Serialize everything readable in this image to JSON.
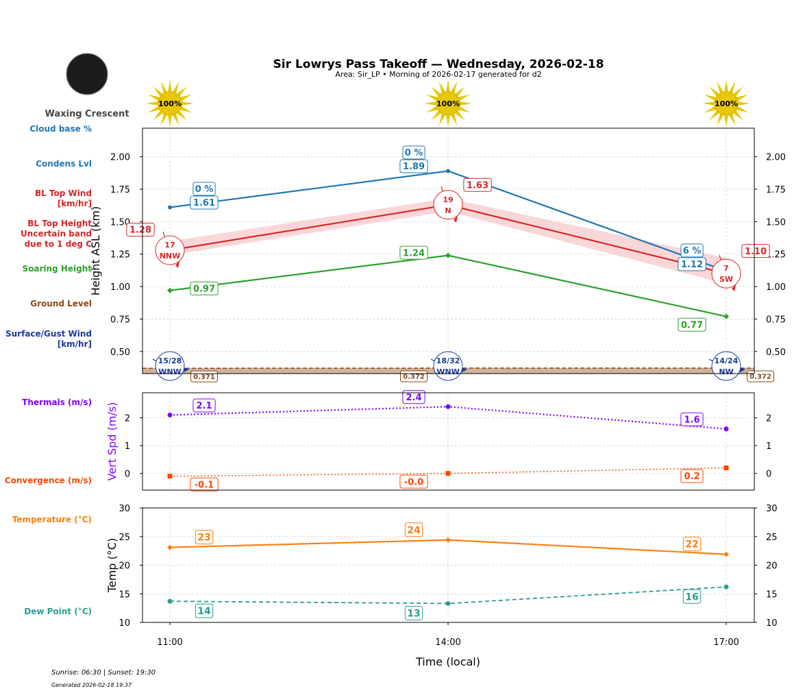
{
  "title": "Sir Lowrys Pass Takeoff — Wednesday, 2026-02-18",
  "subtitle": "Area: Sir_LP • Morning of 2026-02-17 generated for d2",
  "moon_phase": "Waxing Crescent",
  "footer": {
    "sun": "Sunrise: 06:30 | Sunset: 19:30",
    "generated": "Generated 2026-02-18 19:37"
  },
  "colors": {
    "cloud": "#1f77b4",
    "bltop": "#d62728",
    "band": "#f7c6c9",
    "soaring": "#2ca02c",
    "ground": "#8b4513",
    "surface": "#1a3a9e",
    "thermals": "#7f00ff",
    "convergence": "#ff4500",
    "temperature": "#ff7f0e",
    "dewpoint": "#2a9d8f",
    "sun": "#e8c70a"
  },
  "row_labels": {
    "cloud_base": "Cloud base %",
    "condens": "Condens Lvl",
    "bl_wind": [
      "BL Top Wind",
      "[km/hr]"
    ],
    "bl_height": [
      "BL Top Height",
      "Uncertain band",
      "due to 1 deg C"
    ],
    "soaring": "Soaring Height",
    "ground": "Ground Level",
    "surface_wind": [
      "Surface/Gust Wind",
      "[km/hr]"
    ],
    "thermals": "Thermals (m/s)",
    "convergence": "Convergence (m/s)",
    "temperature": "Temperature (°C)",
    "dewpoint": "Dew Point (°C)"
  },
  "chart_data": [
    {
      "type": "line",
      "ylabel": "Height ASL (km)",
      "ylim": [
        0.33,
        2.22
      ],
      "yticks": [
        "0.50",
        "0.75",
        "1.00",
        "1.25",
        "1.50",
        "1.75",
        "2.00"
      ],
      "x": [
        "11:00",
        "14:00",
        "17:00"
      ],
      "sun_percent": [
        "100%",
        "100%",
        "100%"
      ],
      "series": [
        {
          "name": "Condens Lvl",
          "values": [
            1.61,
            1.89,
            1.12
          ],
          "labels": [
            "1.61",
            "1.89",
            "1.12"
          ]
        },
        {
          "name": "Cloud base %",
          "values": [
            0,
            0,
            6
          ],
          "labels": [
            "0 %",
            "0 %",
            "6 %"
          ]
        },
        {
          "name": "BL Top Height",
          "values": [
            1.28,
            1.63,
            1.1
          ],
          "labels": [
            "1.28",
            "1.63",
            "1.10"
          ],
          "band": [
            [
              1.24,
              1.35
            ],
            [
              1.58,
              1.68
            ],
            [
              1.02,
              1.22
            ]
          ]
        },
        {
          "name": "Soaring Height",
          "values": [
            0.97,
            1.24,
            0.77
          ],
          "labels": [
            "0.97",
            "1.24",
            "0.77"
          ]
        },
        {
          "name": "Ground Level",
          "values": [
            0.371,
            0.372,
            0.372
          ],
          "labels": [
            "0.371",
            "0.372",
            "0.372"
          ]
        }
      ],
      "bl_wind": [
        {
          "speed": "17",
          "dir": "NNW"
        },
        {
          "speed": "19",
          "dir": "N"
        },
        {
          "speed": "7",
          "dir": "SW"
        }
      ],
      "surface_wind": [
        {
          "speed": "15/28",
          "dir": "WNW"
        },
        {
          "speed": "18/32",
          "dir": "WNW"
        },
        {
          "speed": "14/24",
          "dir": "NW"
        }
      ]
    },
    {
      "type": "line",
      "ylabel": "Vert Spd (m/s)",
      "ylim": [
        -0.6,
        2.9
      ],
      "yticks": [
        "0",
        "1",
        "2"
      ],
      "x": [
        "11:00",
        "14:00",
        "17:00"
      ],
      "series": [
        {
          "name": "Thermals (m/s)",
          "values": [
            2.1,
            2.4,
            1.6
          ],
          "labels": [
            "2.1",
            "2.4",
            "1.6"
          ]
        },
        {
          "name": "Convergence (m/s)",
          "values": [
            -0.1,
            0.0,
            0.2
          ],
          "labels": [
            "-0.1",
            "-0.0",
            "0.2"
          ]
        }
      ]
    },
    {
      "type": "line",
      "ylabel": "Temp (°C)",
      "xlabel": "Time (local)",
      "ylim": [
        10,
        30
      ],
      "yticks": [
        "10",
        "15",
        "20",
        "25",
        "30"
      ],
      "x": [
        "11:00",
        "14:00",
        "17:00"
      ],
      "series": [
        {
          "name": "Temperature (°C)",
          "values": [
            23.1,
            24.4,
            21.9
          ],
          "labels": [
            "23",
            "24",
            "22"
          ]
        },
        {
          "name": "Dew Point (°C)",
          "values": [
            13.7,
            13.3,
            16.2
          ],
          "labels": [
            "14",
            "13",
            "16"
          ]
        }
      ]
    }
  ]
}
